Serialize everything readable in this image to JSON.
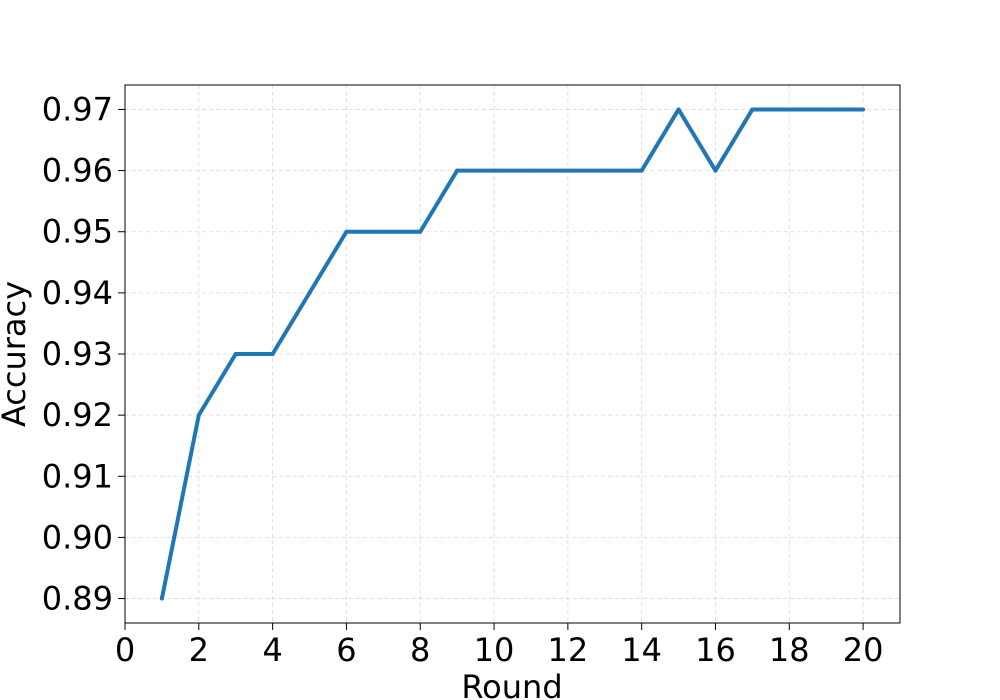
{
  "chart_data": {
    "type": "line",
    "title": "",
    "xlabel": "Round",
    "ylabel": "Accuracy",
    "xlim": [
      0,
      21
    ],
    "ylim": [
      0.886,
      0.974
    ],
    "grid": true,
    "x_ticks": [
      0,
      2,
      4,
      6,
      8,
      10,
      12,
      14,
      16,
      18,
      20
    ],
    "x_tick_labels": [
      "0",
      "2",
      "4",
      "6",
      "8",
      "10",
      "12",
      "14",
      "16",
      "18",
      "20"
    ],
    "y_ticks": [
      0.89,
      0.9,
      0.91,
      0.92,
      0.93,
      0.94,
      0.95,
      0.96,
      0.97
    ],
    "y_tick_labels": [
      "0.89",
      "0.90",
      "0.91",
      "0.92",
      "0.93",
      "0.94",
      "0.95",
      "0.96",
      "0.97"
    ],
    "x": [
      1,
      2,
      3,
      4,
      5,
      6,
      7,
      8,
      9,
      10,
      11,
      12,
      13,
      14,
      15,
      16,
      17,
      18,
      19,
      20
    ],
    "series": [
      {
        "color": "#1f77b4",
        "values": [
          0.89,
          0.92,
          0.93,
          0.93,
          0.94,
          0.95,
          0.95,
          0.95,
          0.96,
          0.96,
          0.96,
          0.96,
          0.96,
          0.96,
          0.97,
          0.96,
          0.97,
          0.97,
          0.97,
          0.97
        ]
      }
    ]
  }
}
